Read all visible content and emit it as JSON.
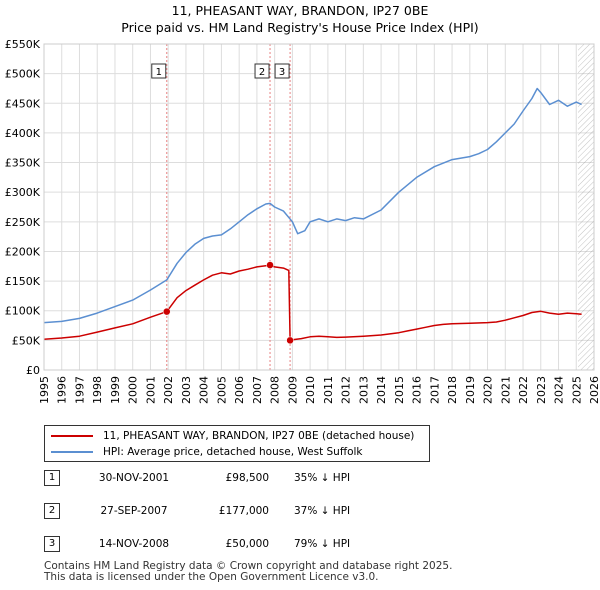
{
  "title_line1": "11, PHEASANT WAY, BRANDON, IP27 0BE",
  "title_line2": "Price paid vs. HM Land Registry's House Price Index (HPI)",
  "legend": {
    "property": "11, PHEASANT WAY, BRANDON, IP27 0BE (detached house)",
    "hpi": "HPI: Average price, detached house, West Suffolk"
  },
  "colors": {
    "property": "#cc0000",
    "hpi": "#5b8fd1",
    "grid": "#dddddd",
    "marker_line": "#e88080",
    "hatch": "#999999"
  },
  "sales": [
    {
      "n": "1",
      "date": "30-NOV-2001",
      "price": "£98,500",
      "hpi": "35% ↓ HPI"
    },
    {
      "n": "2",
      "date": "27-SEP-2007",
      "price": "£177,000",
      "hpi": "37% ↓ HPI"
    },
    {
      "n": "3",
      "date": "14-NOV-2008",
      "price": "£50,000",
      "hpi": "79% ↓ HPI"
    }
  ],
  "footer": {
    "line1": "Contains HM Land Registry data © Crown copyright and database right 2025.",
    "line2": "This data is licensed under the Open Government Licence v3.0."
  },
  "chart_data": {
    "type": "line",
    "title": "11, PHEASANT WAY, BRANDON, IP27 0BE",
    "subtitle": "Price paid vs. HM Land Registry's House Price Index (HPI)",
    "xlabel": "",
    "ylabel": "",
    "xlim": [
      1995,
      2026
    ],
    "ylim": [
      0,
      550000
    ],
    "x_ticks": [
      1995,
      1996,
      1997,
      1998,
      1999,
      2000,
      2001,
      2002,
      2003,
      2004,
      2005,
      2006,
      2007,
      2008,
      2009,
      2010,
      2011,
      2012,
      2013,
      2014,
      2015,
      2016,
      2017,
      2018,
      2019,
      2020,
      2021,
      2022,
      2023,
      2024,
      2025,
      2026
    ],
    "y_ticks": [
      {
        "v": 0,
        "label": "£0"
      },
      {
        "v": 50000,
        "label": "£50K"
      },
      {
        "v": 100000,
        "label": "£100K"
      },
      {
        "v": 150000,
        "label": "£150K"
      },
      {
        "v": 200000,
        "label": "£200K"
      },
      {
        "v": 250000,
        "label": "£250K"
      },
      {
        "v": 300000,
        "label": "£300K"
      },
      {
        "v": 350000,
        "label": "£350K"
      },
      {
        "v": 400000,
        "label": "£400K"
      },
      {
        "v": 450000,
        "label": "£450K"
      },
      {
        "v": 500000,
        "label": "£500K"
      },
      {
        "v": 550000,
        "label": "£550K"
      }
    ],
    "grid": true,
    "legend_position": "below",
    "projection_hatch_from": 2025.1,
    "sale_markers": [
      {
        "n": "1",
        "x": 2001.92,
        "y": 98500
      },
      {
        "n": "2",
        "x": 2007.74,
        "y": 177000
      },
      {
        "n": "3",
        "x": 2008.87,
        "y": 50000
      }
    ],
    "series": [
      {
        "name": "11, PHEASANT WAY, BRANDON, IP27 0BE (detached house)",
        "x": [
          1995.0,
          1996.0,
          1997.0,
          1998.0,
          1999.0,
          2000.0,
          2001.0,
          2001.92,
          2002.5,
          2003.0,
          2003.5,
          2004.0,
          2004.5,
          2005.0,
          2005.5,
          2006.0,
          2006.5,
          2007.0,
          2007.5,
          2007.74,
          2008.0,
          2008.5,
          2008.8,
          2008.87,
          2009.0,
          2009.5,
          2010.0,
          2010.5,
          2011.0,
          2011.5,
          2012.0,
          2013.0,
          2014.0,
          2015.0,
          2015.5,
          2016.0,
          2016.5,
          2017.0,
          2017.5,
          2018.0,
          2019.0,
          2020.0,
          2020.5,
          2021.0,
          2021.5,
          2022.0,
          2022.5,
          2023.0,
          2023.5,
          2024.0,
          2024.5,
          2025.0,
          2025.3
        ],
        "y": [
          52000,
          54000,
          57000,
          64000,
          71000,
          78000,
          89000,
          98500,
          122000,
          134000,
          143000,
          152000,
          160000,
          164000,
          162000,
          167000,
          170000,
          174000,
          176000,
          177000,
          174000,
          172000,
          168000,
          50000,
          51000,
          53000,
          56000,
          57000,
          56000,
          55000,
          55500,
          57000,
          59000,
          63000,
          66000,
          69000,
          72000,
          75000,
          77000,
          78000,
          79000,
          80000,
          81000,
          84000,
          88000,
          92000,
          97000,
          99000,
          96000,
          94000,
          96000,
          95000,
          94000
        ]
      },
      {
        "name": "HPI: Average price, detached house, West Suffolk",
        "x": [
          1995.0,
          1996.0,
          1997.0,
          1998.0,
          1999.0,
          2000.0,
          2001.0,
          2001.92,
          2002.5,
          2003.0,
          2003.5,
          2004.0,
          2004.5,
          2005.0,
          2005.5,
          2006.0,
          2006.5,
          2007.0,
          2007.5,
          2007.74,
          2008.0,
          2008.5,
          2009.0,
          2009.3,
          2009.7,
          2010.0,
          2010.5,
          2011.0,
          2011.5,
          2012.0,
          2012.5,
          2013.0,
          2014.0,
          2015.0,
          2016.0,
          2017.0,
          2018.0,
          2019.0,
          2019.5,
          2020.0,
          2020.5,
          2021.0,
          2021.5,
          2022.0,
          2022.5,
          2022.8,
          2023.0,
          2023.5,
          2024.0,
          2024.5,
          2025.0,
          2025.3
        ],
        "y": [
          80000,
          82000,
          87000,
          96000,
          107000,
          118000,
          135000,
          152000,
          180000,
          198000,
          212000,
          222000,
          226000,
          228000,
          238000,
          250000,
          262000,
          272000,
          280000,
          281000,
          275000,
          268000,
          250000,
          230000,
          235000,
          250000,
          255000,
          250000,
          255000,
          252000,
          257000,
          255000,
          270000,
          300000,
          325000,
          343000,
          355000,
          360000,
          365000,
          372000,
          385000,
          400000,
          415000,
          437000,
          458000,
          475000,
          468000,
          448000,
          455000,
          445000,
          452000,
          448000
        ]
      }
    ]
  }
}
